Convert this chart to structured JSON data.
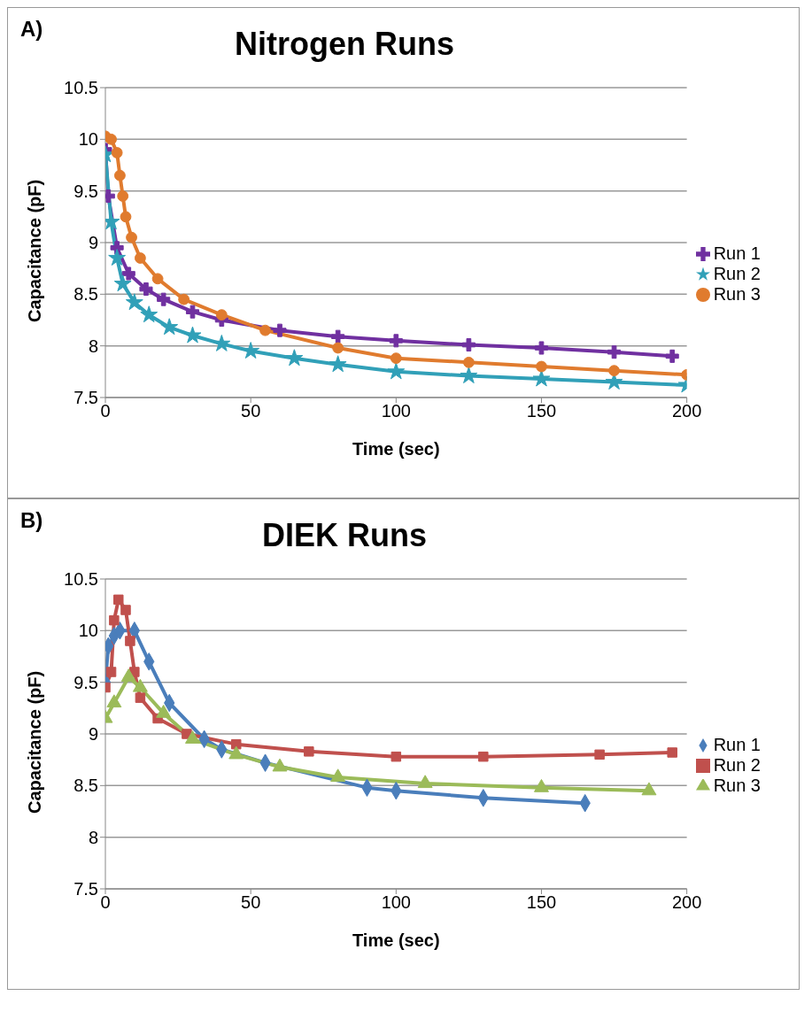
{
  "chart_data": [
    {
      "type": "line",
      "title": "Nitrogen Runs",
      "xlabel": "Time (sec)",
      "ylabel": "Capacitance (pF)",
      "annotations": [
        "A)"
      ],
      "xlim": [
        0,
        200
      ],
      "xticks": [
        0,
        50,
        100,
        150,
        200
      ],
      "ylim": [
        7.5,
        10.5
      ],
      "yticks": [
        7.5,
        8,
        8.5,
        9,
        9.5,
        10,
        10.5
      ],
      "grid": "y",
      "legend": "right",
      "series": [
        {
          "name": "Run 1",
          "color": "#7030a0",
          "marker": "cross",
          "x": [
            0,
            1,
            4,
            8,
            14,
            20,
            30,
            40,
            60,
            80,
            100,
            125,
            150,
            175,
            195
          ],
          "values": [
            9.9,
            9.45,
            8.95,
            8.7,
            8.55,
            8.45,
            8.33,
            8.25,
            8.15,
            8.09,
            8.05,
            8.01,
            7.98,
            7.94,
            7.9
          ]
        },
        {
          "name": "Run 2",
          "color": "#31a0b8",
          "marker": "star",
          "x": [
            0,
            2,
            4,
            6,
            10,
            15,
            22,
            30,
            40,
            50,
            65,
            80,
            100,
            125,
            150,
            175,
            200
          ],
          "values": [
            9.85,
            9.2,
            8.85,
            8.6,
            8.42,
            8.3,
            8.18,
            8.1,
            8.02,
            7.95,
            7.88,
            7.82,
            7.75,
            7.71,
            7.68,
            7.65,
            7.62
          ]
        },
        {
          "name": "Run 3",
          "color": "#e07b2e",
          "marker": "circle",
          "x": [
            0,
            2,
            4,
            5,
            6,
            7,
            9,
            12,
            18,
            27,
            40,
            55,
            80,
            100,
            125,
            150,
            175,
            200
          ],
          "values": [
            10.03,
            10,
            9.87,
            9.65,
            9.45,
            9.25,
            9.05,
            8.85,
            8.65,
            8.45,
            8.3,
            8.15,
            7.98,
            7.88,
            7.84,
            7.8,
            7.76,
            7.72
          ]
        }
      ]
    },
    {
      "type": "line",
      "title": "DIEK Runs",
      "xlabel": "Time (sec)",
      "ylabel": "Capacitance (pF)",
      "annotations": [
        "B)"
      ],
      "xlim": [
        0,
        200
      ],
      "xticks": [
        0,
        50,
        100,
        150,
        200
      ],
      "ylim": [
        7.5,
        10.5
      ],
      "yticks": [
        7.5,
        8,
        8.5,
        9,
        9.5,
        10,
        10.5
      ],
      "grid": "y",
      "legend": "right",
      "series": [
        {
          "name": "Run 1",
          "color": "#4a7ebb",
          "marker": "diamond",
          "x": [
            0,
            1,
            3,
            5,
            10,
            15,
            22,
            34,
            40,
            55,
            90,
            100,
            130,
            165
          ],
          "values": [
            9.5,
            9.85,
            9.95,
            10,
            10,
            9.7,
            9.3,
            8.95,
            8.85,
            8.72,
            8.48,
            8.45,
            8.38,
            8.33
          ]
        },
        {
          "name": "Run 2",
          "color": "#c0504d",
          "marker": "square",
          "x": [
            0,
            2,
            3,
            4.5,
            7,
            8.5,
            10,
            12,
            18,
            28,
            45,
            70,
            100,
            130,
            170,
            195
          ],
          "values": [
            9.45,
            9.6,
            10.1,
            10.3,
            10.2,
            9.9,
            9.6,
            9.35,
            9.15,
            9,
            8.9,
            8.83,
            8.78,
            8.78,
            8.8,
            8.82
          ]
        },
        {
          "name": "Run 3",
          "color": "#9bbb59",
          "marker": "triangle",
          "x": [
            0,
            3,
            8,
            12,
            20,
            30,
            45,
            60,
            80,
            110,
            150,
            187
          ],
          "values": [
            9.15,
            9.3,
            9.55,
            9.45,
            9.2,
            8.95,
            8.8,
            8.68,
            8.58,
            8.52,
            8.48,
            8.45
          ]
        }
      ]
    }
  ]
}
